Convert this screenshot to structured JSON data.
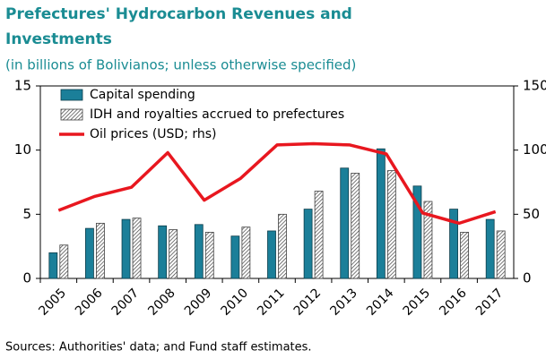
{
  "chart_data": {
    "type": "bar",
    "title": "Prefectures' Hydrocarbon Revenues and Investments",
    "subtitle": "(in billions of Bolivianos; unless otherwise specified)",
    "footnote": "Sources: Authorities' data; and Fund staff estimates.",
    "categories": [
      "2005",
      "2006",
      "2007",
      "2008",
      "2009",
      "2010",
      "2011",
      "2012",
      "2013",
      "2014",
      "2015",
      "2016",
      "2017"
    ],
    "series": [
      {
        "name": "Capital spending",
        "type": "bar",
        "color": "#1b7f99",
        "values": [
          2.0,
          3.9,
          4.6,
          4.1,
          4.2,
          3.3,
          3.7,
          5.4,
          8.6,
          10.1,
          7.2,
          5.4,
          4.6
        ]
      },
      {
        "name": "IDH and royalties accrued to prefectures",
        "type": "bar",
        "color": "#404040",
        "hatch": true,
        "values": [
          2.6,
          4.3,
          4.7,
          3.8,
          3.6,
          4.0,
          5.0,
          6.8,
          8.2,
          8.4,
          6.0,
          3.6,
          3.7
        ]
      },
      {
        "name": "Oil prices (USD; rhs)",
        "type": "line",
        "axis": "y2",
        "color": "#e8171f",
        "values": [
          53,
          64,
          71,
          98,
          61,
          78,
          104,
          105,
          104,
          97,
          51,
          43,
          52
        ]
      }
    ],
    "ylim": [
      0,
      15
    ],
    "yticks": [
      0,
      5,
      10,
      15
    ],
    "y2lim": [
      0,
      150
    ],
    "y2ticks": [
      0,
      50,
      100,
      150
    ],
    "legend": "top-left"
  }
}
